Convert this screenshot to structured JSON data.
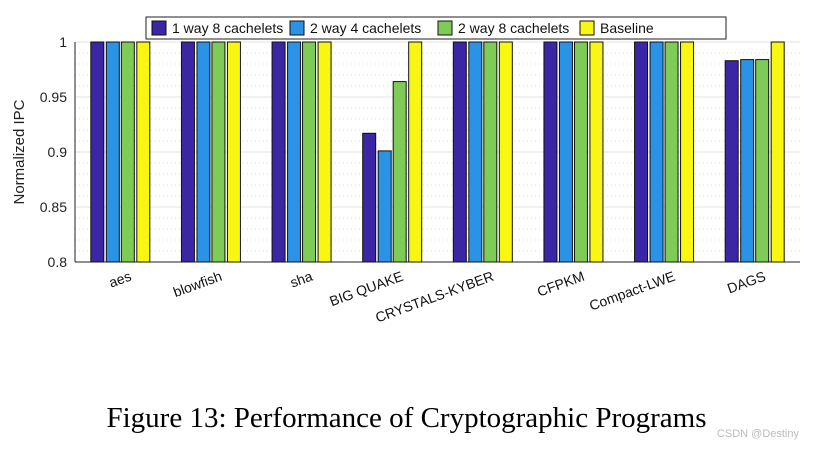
{
  "chart_data": {
    "type": "bar",
    "title": "",
    "xlabel": "",
    "ylabel": "Normalized IPC",
    "ylim": [
      0.8,
      1
    ],
    "yticks": [
      "0.8",
      "0.85",
      "0.9",
      "0.95",
      "1"
    ],
    "grid": true,
    "legend_position": "top",
    "categories": [
      "aes",
      "blowfish",
      "sha",
      "BIG QUAKE",
      "CRYSTALS-KYBER",
      "CFPKM",
      "Compact-LWE",
      "DAGS"
    ],
    "series": [
      {
        "name": "1 way 8 cachelets",
        "color": "#3b27a6",
        "values": [
          1,
          1,
          1,
          0.917,
          1,
          1,
          1,
          0.983
        ]
      },
      {
        "name": "2 way 4 cachelets",
        "color": "#2a93e6",
        "values": [
          1,
          1,
          1,
          0.901,
          1,
          1,
          1,
          0.984
        ]
      },
      {
        "name": "2 way 8 cachelets",
        "color": "#7fcb57",
        "values": [
          1,
          1,
          1,
          0.964,
          1,
          1,
          1,
          0.984
        ]
      },
      {
        "name": "Baseline",
        "color": "#f7f711",
        "values": [
          1,
          1,
          1,
          1,
          1,
          1,
          1,
          1
        ]
      }
    ]
  },
  "caption": "Figure 13: Performance of Cryptographic Programs",
  "watermark": "CSDN @Destiny"
}
